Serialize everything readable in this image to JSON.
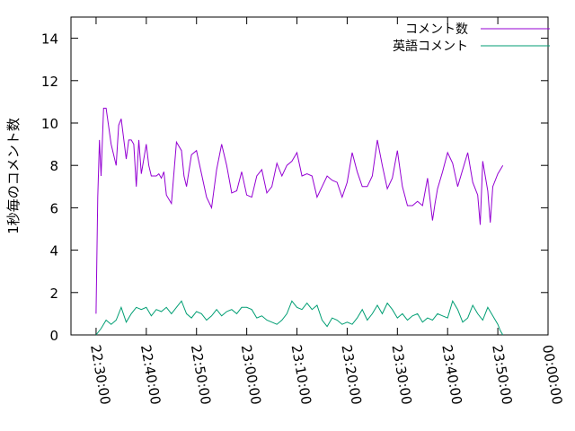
{
  "chart_data": {
    "type": "line",
    "title": "",
    "xlabel": "",
    "ylabel": "1秒毎のコメント数",
    "ylim": [
      0,
      15
    ],
    "yticks": [
      0,
      2,
      4,
      6,
      8,
      10,
      12,
      14
    ],
    "xlim": [
      "22:25:00",
      "00:00:00"
    ],
    "xticks": [
      "22:30:00",
      "22:40:00",
      "22:50:00",
      "23:00:00",
      "23:10:00",
      "23:20:00",
      "23:30:00",
      "23:40:00",
      "23:50:00",
      "00:00:00"
    ],
    "grid": false,
    "legend": "top-right",
    "series": [
      {
        "name": "コメント数",
        "color": "#9400d3",
        "x": [
          "22:30:00",
          "22:30:20",
          "22:30:40",
          "22:31:00",
          "22:31:30",
          "22:32:00",
          "22:33:00",
          "22:34:00",
          "22:34:30",
          "22:35:00",
          "22:36:00",
          "22:36:30",
          "22:37:00",
          "22:37:30",
          "22:38:00",
          "22:38:30",
          "22:39:00",
          "22:40:00",
          "22:40:30",
          "22:41:00",
          "22:42:00",
          "22:42:30",
          "22:43:00",
          "22:43:30",
          "22:44:00",
          "22:45:00",
          "22:46:00",
          "22:47:00",
          "22:47:30",
          "22:48:00",
          "22:49:00",
          "22:50:00",
          "22:51:00",
          "22:52:00",
          "22:53:00",
          "22:54:00",
          "22:55:00",
          "22:56:00",
          "22:57:00",
          "22:58:00",
          "22:59:00",
          "23:00:00",
          "23:01:00",
          "23:02:00",
          "23:03:00",
          "23:04:00",
          "23:05:00",
          "23:06:00",
          "23:07:00",
          "23:08:00",
          "23:09:00",
          "23:10:00",
          "23:11:00",
          "23:12:00",
          "23:13:00",
          "23:14:00",
          "23:15:00",
          "23:16:00",
          "23:17:00",
          "23:18:00",
          "23:19:00",
          "23:20:00",
          "23:21:00",
          "23:22:00",
          "23:23:00",
          "23:24:00",
          "23:25:00",
          "23:26:00",
          "23:27:00",
          "23:28:00",
          "23:29:00",
          "23:30:00",
          "23:31:00",
          "23:32:00",
          "23:33:00",
          "23:34:00",
          "23:35:00",
          "23:36:00",
          "23:37:00",
          "23:37:30",
          "23:38:00",
          "23:39:00",
          "23:40:00",
          "23:41:00",
          "23:42:00",
          "23:43:00",
          "23:44:00",
          "23:45:00",
          "23:46:00",
          "23:46:30",
          "23:47:00",
          "23:48:00",
          "23:48:30",
          "23:49:00",
          "23:50:00",
          "23:51:00"
        ],
        "y": [
          1.0,
          6.5,
          9.2,
          7.5,
          10.7,
          10.7,
          9.0,
          8.0,
          9.9,
          10.2,
          8.3,
          9.2,
          9.2,
          9.0,
          7.0,
          9.2,
          7.6,
          9.0,
          8.0,
          7.5,
          7.5,
          7.6,
          7.4,
          7.7,
          6.6,
          6.2,
          9.1,
          8.7,
          7.5,
          7.0,
          8.5,
          8.7,
          7.6,
          6.5,
          6.0,
          7.8,
          9.0,
          8.0,
          6.7,
          6.8,
          7.7,
          6.6,
          6.5,
          7.5,
          7.8,
          6.7,
          7.0,
          8.1,
          7.5,
          8.0,
          8.2,
          8.6,
          7.5,
          7.6,
          7.5,
          6.5,
          7.0,
          7.5,
          7.3,
          7.2,
          6.5,
          7.2,
          8.6,
          7.7,
          7.0,
          7.0,
          7.5,
          9.2,
          8.0,
          6.9,
          7.4,
          8.7,
          7.0,
          6.1,
          6.1,
          6.3,
          6.1,
          7.4,
          5.4,
          6.2,
          6.9,
          7.7,
          8.6,
          8.1,
          7.0,
          7.8,
          8.6,
          7.2,
          6.6,
          5.2,
          8.2,
          6.8,
          5.3,
          7.0,
          7.6,
          8.0
        ]
      },
      {
        "name": "英語コメント",
        "color": "#009e73",
        "x": [
          "22:30:00",
          "22:31:00",
          "22:32:00",
          "22:33:00",
          "22:34:00",
          "22:35:00",
          "22:36:00",
          "22:37:00",
          "22:38:00",
          "22:39:00",
          "22:40:00",
          "22:41:00",
          "22:42:00",
          "22:43:00",
          "22:44:00",
          "22:45:00",
          "22:46:00",
          "22:47:00",
          "22:48:00",
          "22:49:00",
          "22:50:00",
          "22:51:00",
          "22:52:00",
          "22:53:00",
          "22:54:00",
          "22:55:00",
          "22:56:00",
          "22:57:00",
          "22:58:00",
          "22:59:00",
          "23:00:00",
          "23:01:00",
          "23:02:00",
          "23:03:00",
          "23:04:00",
          "23:05:00",
          "23:06:00",
          "23:07:00",
          "23:08:00",
          "23:09:00",
          "23:10:00",
          "23:11:00",
          "23:12:00",
          "23:13:00",
          "23:14:00",
          "23:15:00",
          "23:16:00",
          "23:17:00",
          "23:18:00",
          "23:19:00",
          "23:20:00",
          "23:21:00",
          "23:22:00",
          "23:23:00",
          "23:24:00",
          "23:25:00",
          "23:26:00",
          "23:27:00",
          "23:28:00",
          "23:29:00",
          "23:30:00",
          "23:31:00",
          "23:32:00",
          "23:33:00",
          "23:34:00",
          "23:35:00",
          "23:36:00",
          "23:37:00",
          "23:38:00",
          "23:39:00",
          "23:40:00",
          "23:41:00",
          "23:42:00",
          "23:43:00",
          "23:44:00",
          "23:45:00",
          "23:46:00",
          "23:47:00",
          "23:48:00",
          "23:49:00",
          "23:50:00",
          "23:50:30",
          "23:51:00"
        ],
        "y": [
          0.0,
          0.3,
          0.7,
          0.5,
          0.7,
          1.3,
          0.6,
          1.0,
          1.3,
          1.2,
          1.3,
          0.9,
          1.2,
          1.1,
          1.3,
          1.0,
          1.3,
          1.6,
          1.0,
          0.8,
          1.1,
          1.0,
          0.7,
          0.9,
          1.2,
          0.9,
          1.1,
          1.2,
          1.0,
          1.3,
          1.3,
          1.2,
          0.8,
          0.9,
          0.7,
          0.6,
          0.5,
          0.7,
          1.0,
          1.6,
          1.3,
          1.2,
          1.5,
          1.2,
          1.4,
          0.7,
          0.4,
          0.8,
          0.7,
          0.5,
          0.6,
          0.5,
          0.8,
          1.2,
          0.7,
          1.0,
          1.4,
          1.0,
          1.5,
          1.2,
          0.8,
          1.0,
          0.7,
          0.9,
          1.0,
          0.6,
          0.8,
          0.7,
          1.0,
          0.9,
          0.8,
          1.6,
          1.2,
          0.6,
          0.8,
          1.4,
          1.0,
          0.7,
          1.3,
          0.9,
          0.5,
          0.2,
          0.0
        ]
      }
    ]
  }
}
